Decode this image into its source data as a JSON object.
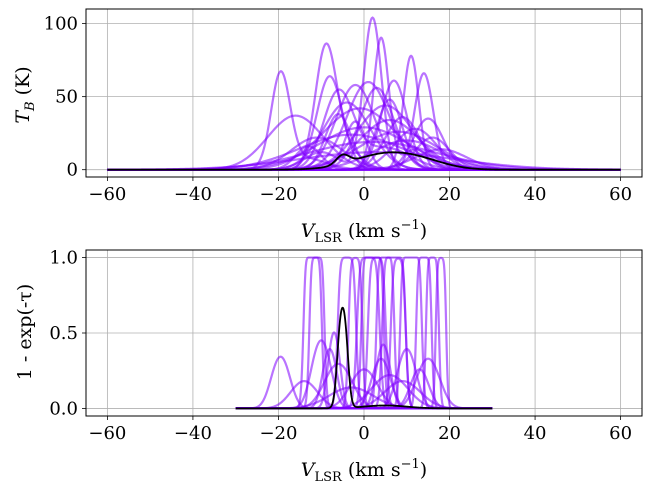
{
  "chart_data": [
    {
      "type": "line",
      "panel": "top",
      "xlabel": "V_LSR (km s⁻¹)",
      "xlabel_main": "V",
      "xlabel_sub": "LSR",
      "xlabel_unit": " (km s",
      "xlabel_sup": "−1",
      "xlabel_close": ")",
      "ylabel": "T_B (K)",
      "ylabel_main": "T",
      "ylabel_sub": "B",
      "ylabel_unit": " (K)",
      "xlim": [
        -65,
        65
      ],
      "ylim": [
        -5,
        110
      ],
      "x_ticks": [
        -60,
        -40,
        -20,
        0,
        20,
        40,
        60
      ],
      "x_tick_labels": [
        "−60",
        "−40",
        "−20",
        "0",
        "20",
        "40",
        "60"
      ],
      "y_ticks": [
        0,
        50,
        100
      ],
      "y_tick_labels": [
        "0",
        "50",
        "100"
      ],
      "grid": true,
      "x_range": [
        -60,
        60
      ],
      "sample_color": "#8000ff",
      "mean_color": "#000000",
      "samples": [
        [
          [
            -19.5,
            63,
            2.2
          ],
          [
            -14,
            8,
            5
          ]
        ],
        [
          [
            -16,
            37,
            6.5
          ]
        ],
        [
          [
            -9,
            71,
            2.4
          ],
          [
            -6,
            20,
            4
          ]
        ],
        [
          [
            -8,
            64,
            3.0
          ]
        ],
        [
          [
            -6,
            52,
            3.5
          ],
          [
            5,
            15,
            6
          ]
        ],
        [
          [
            -4,
            46,
            5.5
          ]
        ],
        [
          [
            -2,
            58,
            4.5
          ]
        ],
        [
          [
            1,
            60,
            5.0
          ]
        ],
        [
          [
            2,
            104,
            2.1
          ],
          [
            -10,
            12,
            4
          ]
        ],
        [
          [
            3,
            56,
            4.0
          ]
        ],
        [
          [
            4,
            90,
            1.8
          ],
          [
            12,
            14,
            3
          ]
        ],
        [
          [
            6,
            34,
            7.0
          ]
        ],
        [
          [
            7,
            61,
            3.0
          ]
        ],
        [
          [
            9,
            36,
            4.0
          ]
        ],
        [
          [
            11,
            78,
            1.8
          ]
        ],
        [
          [
            14,
            66,
            2.2
          ]
        ],
        [
          [
            15,
            35,
            3.5
          ]
        ],
        [
          [
            18,
            14,
            6
          ]
        ],
        [
          [
            -1,
            42,
            8.5
          ]
        ],
        [
          [
            0,
            29,
            10.5
          ]
        ],
        [
          [
            5,
            44,
            6.5
          ]
        ],
        [
          [
            -3,
            24,
            12
          ]
        ],
        [
          [
            2,
            19,
            15
          ]
        ],
        [
          [
            8,
            26,
            9
          ]
        ],
        [
          [
            -11,
            22,
            6
          ]
        ],
        [
          [
            10,
            20,
            8
          ]
        ],
        [
          [
            -6,
            38,
            3
          ]
        ],
        [
          [
            12,
            28,
            5
          ]
        ],
        [
          [
            3,
            12,
            18
          ]
        ],
        [
          [
            -13,
            16,
            3
          ]
        ],
        [
          [
            6,
            48,
            3
          ]
        ],
        [
          [
            -2,
            33,
            2.5
          ]
        ],
        [
          [
            16,
            22,
            4
          ]
        ]
      ],
      "mean_components": [
        [
          -5,
          6,
          1.5
        ],
        [
          5,
          10.5,
          7.5
        ],
        [
          14,
          3.5,
          6
        ]
      ]
    },
    {
      "type": "line",
      "panel": "bottom",
      "xlabel": "V_LSR (km s⁻¹)",
      "xlabel_main": "V",
      "xlabel_sub": "LSR",
      "xlabel_unit": " (km s",
      "xlabel_sup": "−1",
      "xlabel_close": ")",
      "ylabel": "1 - exp(-τ)",
      "xlim": [
        -65,
        65
      ],
      "ylim": [
        -0.05,
        1.05
      ],
      "x_ticks": [
        -60,
        -40,
        -20,
        0,
        20,
        40,
        60
      ],
      "x_tick_labels": [
        "−60",
        "−40",
        "−20",
        "0",
        "20",
        "40",
        "60"
      ],
      "y_ticks": [
        0,
        0.5,
        1
      ],
      "y_tick_labels": [
        "0.0",
        "0.5",
        "1.0"
      ],
      "grid": true,
      "x_range": [
        -30,
        30
      ],
      "sample_color": "#8000ff",
      "mean_color": "#000000",
      "samples": [
        [
          [
            -19.5,
            0.42,
            2.0
          ]
        ],
        [
          [
            -12,
            14,
            0.9
          ]
        ],
        [
          [
            -11,
            9,
            0.8
          ]
        ],
        [
          [
            -10,
            0.6,
            2.0
          ]
        ],
        [
          [
            -8,
            0.5,
            1.5
          ]
        ],
        [
          [
            -6,
            0.35,
            3.0
          ]
        ],
        [
          [
            -4,
            8,
            1.0
          ]
        ],
        [
          [
            -2,
            6,
            0.8
          ]
        ],
        [
          [
            0,
            0.3,
            3.0
          ]
        ],
        [
          [
            1,
            9,
            1.2
          ]
        ],
        [
          [
            2,
            25,
            1.0
          ]
        ],
        [
          [
            3,
            7,
            1.0
          ]
        ],
        [
          [
            4,
            0.4,
            2.0
          ]
        ],
        [
          [
            5,
            12,
            0.9
          ]
        ],
        [
          [
            6,
            0.25,
            4.0
          ]
        ],
        [
          [
            7,
            18,
            1.1
          ]
        ],
        [
          [
            8,
            5,
            0.9
          ]
        ],
        [
          [
            10,
            0.5,
            2.0
          ]
        ],
        [
          [
            11,
            20,
            1.0
          ]
        ],
        [
          [
            13,
            0.3,
            2.0
          ]
        ],
        [
          [
            14,
            10,
            0.8
          ]
        ],
        [
          [
            15,
            0.4,
            2.5
          ]
        ],
        [
          [
            16,
            8,
            0.7
          ]
        ],
        [
          [
            18,
            6,
            0.6
          ]
        ],
        [
          [
            -14,
            0.2,
            3.0
          ]
        ],
        [
          [
            -3,
            0.15,
            5.0
          ]
        ],
        [
          [
            9,
            0.2,
            4.0
          ]
        ],
        [
          [
            -7,
            0.7,
            1.2
          ]
        ],
        [
          [
            4.5,
            0.55,
            1.5
          ]
        ]
      ],
      "mean_tau_components": [
        [
          -5,
          1.1,
          0.9
        ],
        [
          5,
          0.02,
          5
        ]
      ]
    }
  ]
}
